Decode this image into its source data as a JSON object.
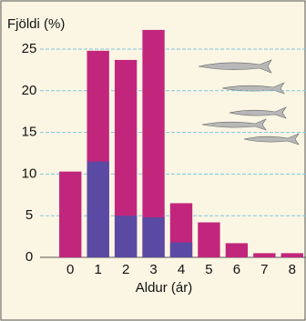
{
  "chart_data": {
    "type": "bar",
    "y_label": "Fjöldi (%)",
    "x_label": "Aldur (ár)",
    "categories": [
      "0",
      "1",
      "2",
      "3",
      "4",
      "5",
      "6",
      "7",
      "8"
    ],
    "series": [
      {
        "color": "#c2267c",
        "values": [
          10.3,
          24.8,
          23.7,
          27.3,
          6.5,
          4.2,
          1.7,
          0.5,
          0.5
        ]
      },
      {
        "color": "#5b4aa3",
        "values": [
          null,
          11.5,
          5,
          4.8,
          1.8,
          null,
          null,
          null,
          null
        ]
      }
    ],
    "ylim": [
      0,
      28
    ],
    "yticks": [
      0,
      5,
      10,
      15,
      20,
      25
    ],
    "grid": true
  }
}
